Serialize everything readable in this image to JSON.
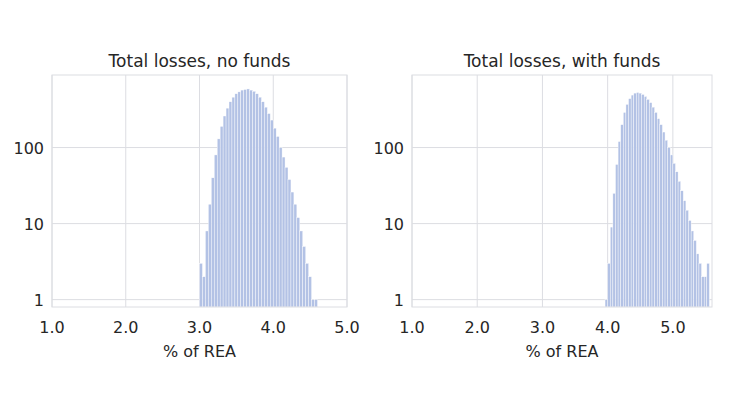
{
  "chart_data": [
    {
      "type": "histogram",
      "title": "Total losses, no funds",
      "x_label": "% of REA",
      "bins": [
        3.0,
        3.04,
        3.08,
        3.12,
        3.16,
        3.2,
        3.24,
        3.28,
        3.32,
        3.36,
        3.4,
        3.44,
        3.48,
        3.52,
        3.56,
        3.6,
        3.64,
        3.68,
        3.72,
        3.76,
        3.8,
        3.84,
        3.88,
        3.92,
        3.96,
        4.0,
        4.04,
        4.08,
        4.12,
        4.16,
        4.2,
        4.24,
        4.28,
        4.32,
        4.36,
        4.4,
        4.44,
        4.48,
        4.52,
        4.56,
        4.6
      ],
      "values": [
        3,
        2,
        8,
        18,
        40,
        80,
        130,
        190,
        260,
        330,
        400,
        460,
        510,
        540,
        570,
        580,
        590,
        570,
        550,
        510,
        460,
        400,
        340,
        280,
        230,
        180,
        140,
        100,
        75,
        55,
        38,
        26,
        18,
        12,
        8,
        5,
        3,
        2,
        1,
        1
      ],
      "color": "#b3c2e5",
      "xlim": [
        1.0,
        5.0
      ],
      "xticks": [
        {
          "value": 1,
          "label": "1.0"
        },
        {
          "value": 2,
          "label": "2.0"
        },
        {
          "value": 3,
          "label": "3.0"
        },
        {
          "value": 4,
          "label": "4.0"
        },
        {
          "value": 5,
          "label": "5.0"
        }
      ],
      "ylim": [
        0.8,
        900
      ],
      "yticks": [
        1,
        10,
        100
      ],
      "log": "y",
      "grid": true
    },
    {
      "type": "histogram",
      "title": "Total losses, with funds",
      "x_label": "% of REA",
      "bins": [
        3.96,
        4.0,
        4.04,
        4.08,
        4.12,
        4.16,
        4.2,
        4.24,
        4.28,
        4.32,
        4.36,
        4.4,
        4.44,
        4.48,
        4.52,
        4.56,
        4.6,
        4.64,
        4.68,
        4.72,
        4.76,
        4.8,
        4.84,
        4.88,
        4.92,
        4.96,
        5.0,
        5.04,
        5.08,
        5.12,
        5.16,
        5.2,
        5.24,
        5.28,
        5.32,
        5.36,
        5.4,
        5.44,
        5.48,
        5.52,
        5.56
      ],
      "values": [
        1,
        3,
        9,
        25,
        60,
        120,
        200,
        290,
        370,
        440,
        490,
        520,
        530,
        520,
        500,
        470,
        430,
        390,
        340,
        290,
        240,
        200,
        160,
        125,
        100,
        80,
        62,
        48,
        36,
        27,
        20,
        15,
        11,
        8,
        6,
        4,
        3,
        2,
        2,
        3
      ],
      "color": "#b3c2e5",
      "xlim": [
        1.0,
        5.6
      ],
      "xticks": [
        {
          "value": 1,
          "label": "1.0"
        },
        {
          "value": 2,
          "label": "2.0"
        },
        {
          "value": 3,
          "label": "3.0"
        },
        {
          "value": 4,
          "label": "4.0"
        },
        {
          "value": 5,
          "label": "5.0"
        }
      ],
      "ylim": [
        0.8,
        900
      ],
      "yticks": [
        1,
        10,
        100
      ],
      "log": "y",
      "grid": true
    }
  ]
}
